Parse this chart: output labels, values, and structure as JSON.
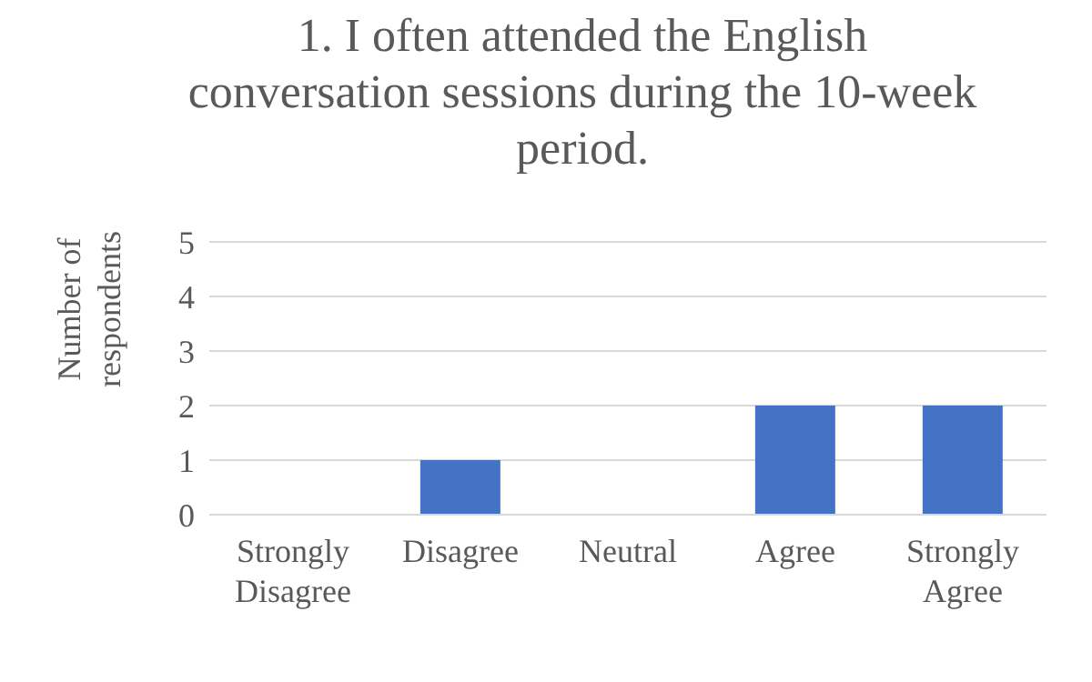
{
  "chart_data": {
    "type": "bar",
    "title": "1. I often attended the English conversation sessions during the 10-week period.",
    "ylabel": "Number of respondents",
    "categories": [
      "Strongly Disagree",
      "Disagree",
      "Neutral",
      "Agree",
      "Strongly Agree"
    ],
    "values": [
      0,
      1,
      0,
      2,
      2
    ],
    "color": "#4472c4",
    "ylim": [
      0,
      5
    ],
    "yticks": [
      0,
      1,
      2,
      3,
      4,
      5
    ],
    "grid": "y"
  }
}
